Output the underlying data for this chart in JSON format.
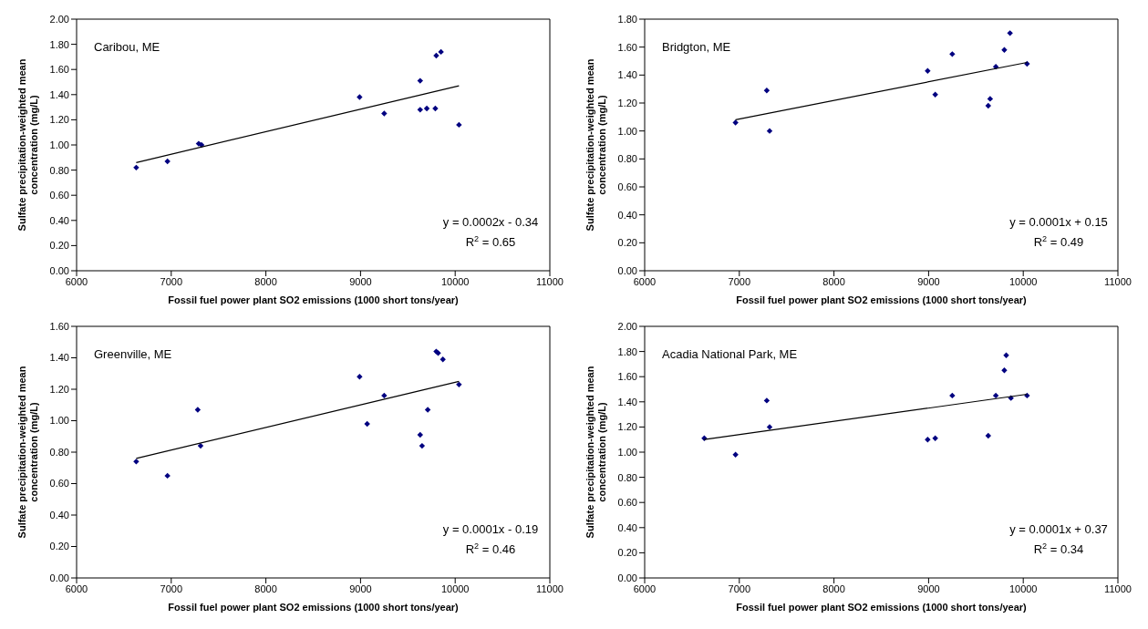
{
  "chart_data": [
    {
      "type": "scatter",
      "xlabel": "Fossil fuel power plant SO2 emissions (1000 short tons/year)",
      "ylabel": "Sulfate precipitation-weighted mean concentration (mg/L)",
      "annotations": [
        "Caribou, ME",
        "y = 0.0002x - 0.34",
        "R$^{2}$ = 0.65"
      ],
      "marker": "diamond",
      "xlim": [
        6000,
        11000
      ],
      "xticks": [
        6000,
        7000,
        8000,
        9000,
        10000,
        11000
      ],
      "ylim": [
        0,
        2
      ],
      "yticks": [
        {
          "value": 0,
          "label": "0.00"
        },
        {
          "value": 0.2,
          "label": "0.20"
        },
        {
          "value": 0.4,
          "label": "0.40"
        },
        {
          "value": 0.6,
          "label": "0.60"
        },
        {
          "value": 0.8,
          "label": "0.80"
        },
        {
          "value": 1,
          "label": "1.00"
        },
        {
          "value": 1.2,
          "label": "1.20"
        },
        {
          "value": 1.4,
          "label": "1.40"
        },
        {
          "value": 1.6,
          "label": "1.60"
        },
        {
          "value": 1.8,
          "label": "1.80"
        },
        {
          "value": 2,
          "label": "2.00"
        }
      ],
      "grid": false,
      "legend": false,
      "series": [
        {
          "color": "#000080",
          "x": [
            6630,
            6960,
            7290,
            7320,
            8990,
            9250,
            9630,
            9630,
            9700,
            9790,
            9800,
            9850,
            10040
          ],
          "values": [
            0.82,
            0.87,
            1.01,
            1.0,
            1.38,
            1.25,
            1.51,
            1.28,
            1.29,
            1.29,
            1.71,
            1.74,
            1.16
          ]
        },
        {
          "type": "line",
          "marker": "none",
          "color": "#000000",
          "x": [
            6630,
            10040
          ],
          "values": [
            0.86,
            1.47
          ]
        }
      ]
    },
    {
      "type": "scatter",
      "xlabel": "Fossil fuel power plant SO2 emissions (1000 short tons/year)",
      "ylabel": "Sulfate precipitation-weighted mean concentration (mg/L)",
      "annotations": [
        "Bridgton, ME",
        "y = 0.0001x + 0.15",
        "R$^{2}$ = 0.49"
      ],
      "marker": "diamond",
      "xlim": [
        6000,
        11000
      ],
      "xticks": [
        6000,
        7000,
        8000,
        9000,
        10000,
        11000
      ],
      "ylim": [
        0,
        1.8
      ],
      "yticks": [
        {
          "value": 0,
          "label": "0.00"
        },
        {
          "value": 0.2,
          "label": "0.20"
        },
        {
          "value": 0.4,
          "label": "0.40"
        },
        {
          "value": 0.6,
          "label": "0.60"
        },
        {
          "value": 0.8,
          "label": "0.80"
        },
        {
          "value": 1,
          "label": "1.00"
        },
        {
          "value": 1.2,
          "label": "1.20"
        },
        {
          "value": 1.4,
          "label": "1.40"
        },
        {
          "value": 1.6,
          "label": "1.60"
        },
        {
          "value": 1.8,
          "label": "1.80"
        }
      ],
      "grid": false,
      "legend": false,
      "series": [
        {
          "color": "#000080",
          "x": [
            6960,
            7290,
            7320,
            8990,
            9070,
            9250,
            9630,
            9650,
            9710,
            9800,
            9860,
            10040
          ],
          "values": [
            1.06,
            1.29,
            1.0,
            1.43,
            1.26,
            1.55,
            1.18,
            1.23,
            1.46,
            1.58,
            1.7,
            1.48
          ]
        },
        {
          "type": "line",
          "marker": "none",
          "color": "#000000",
          "x": [
            6960,
            10040
          ],
          "values": [
            1.08,
            1.49
          ]
        }
      ]
    },
    {
      "type": "scatter",
      "xlabel": "Fossil fuel power plant SO2 emissions (1000 short tons/year)",
      "ylabel": "Sulfate precipitation-weighted mean concentration (mg/L)",
      "annotations": [
        "Greenville, ME",
        "y = 0.0001x - 0.19",
        "R$^{2}$ = 0.46"
      ],
      "marker": "diamond",
      "xlim": [
        6000,
        11000
      ],
      "xticks": [
        6000,
        7000,
        8000,
        9000,
        10000,
        11000
      ],
      "ylim": [
        0,
        1.6
      ],
      "yticks": [
        {
          "value": 0,
          "label": "0.00"
        },
        {
          "value": 0.2,
          "label": "0.20"
        },
        {
          "value": 0.4,
          "label": "0.40"
        },
        {
          "value": 0.6,
          "label": "0.60"
        },
        {
          "value": 0.8,
          "label": "0.80"
        },
        {
          "value": 1,
          "label": "1.00"
        },
        {
          "value": 1.2,
          "label": "1.20"
        },
        {
          "value": 1.4,
          "label": "1.40"
        },
        {
          "value": 1.6,
          "label": "1.60"
        }
      ],
      "grid": false,
      "legend": false,
      "series": [
        {
          "color": "#000080",
          "x": [
            6630,
            6960,
            7280,
            7310,
            8990,
            9070,
            9250,
            9630,
            9650,
            9710,
            9800,
            9820,
            9870,
            10040
          ],
          "values": [
            0.74,
            0.65,
            1.07,
            0.84,
            1.28,
            0.98,
            1.16,
            0.91,
            0.84,
            1.07,
            1.44,
            1.43,
            1.39,
            1.23
          ]
        },
        {
          "type": "line",
          "marker": "none",
          "color": "#000000",
          "x": [
            6630,
            10040
          ],
          "values": [
            0.76,
            1.25
          ]
        }
      ]
    },
    {
      "type": "scatter",
      "xlabel": "Fossil fuel power plant SO2 emissions (1000 short tons/year)",
      "ylabel": "Sulfate precipitation-weighted mean concentration (mg/L)",
      "annotations": [
        "Acadia National Park, ME",
        "y = 0.0001x + 0.37",
        "R$^{2}$ = 0.34"
      ],
      "marker": "diamond",
      "xlim": [
        6000,
        11000
      ],
      "xticks": [
        6000,
        7000,
        8000,
        9000,
        10000,
        11000
      ],
      "ylim": [
        0,
        2
      ],
      "yticks": [
        {
          "value": 0,
          "label": "0.00"
        },
        {
          "value": 0.2,
          "label": "0.20"
        },
        {
          "value": 0.4,
          "label": "0.40"
        },
        {
          "value": 0.6,
          "label": "0.60"
        },
        {
          "value": 0.8,
          "label": "0.80"
        },
        {
          "value": 1,
          "label": "1.00"
        },
        {
          "value": 1.2,
          "label": "1.20"
        },
        {
          "value": 1.4,
          "label": "1.40"
        },
        {
          "value": 1.6,
          "label": "1.60"
        },
        {
          "value": 1.8,
          "label": "1.80"
        },
        {
          "value": 2,
          "label": "2.00"
        }
      ],
      "grid": false,
      "legend": false,
      "series": [
        {
          "color": "#000080",
          "x": [
            6630,
            6960,
            7290,
            7320,
            8990,
            9070,
            9250,
            9630,
            9710,
            9800,
            9820,
            9870,
            10040
          ],
          "values": [
            1.11,
            0.98,
            1.41,
            1.2,
            1.1,
            1.11,
            1.45,
            1.13,
            1.45,
            1.65,
            1.77,
            1.43,
            1.45
          ]
        },
        {
          "type": "line",
          "marker": "none",
          "color": "#000000",
          "x": [
            6630,
            10040
          ],
          "values": [
            1.1,
            1.46
          ]
        }
      ]
    }
  ]
}
